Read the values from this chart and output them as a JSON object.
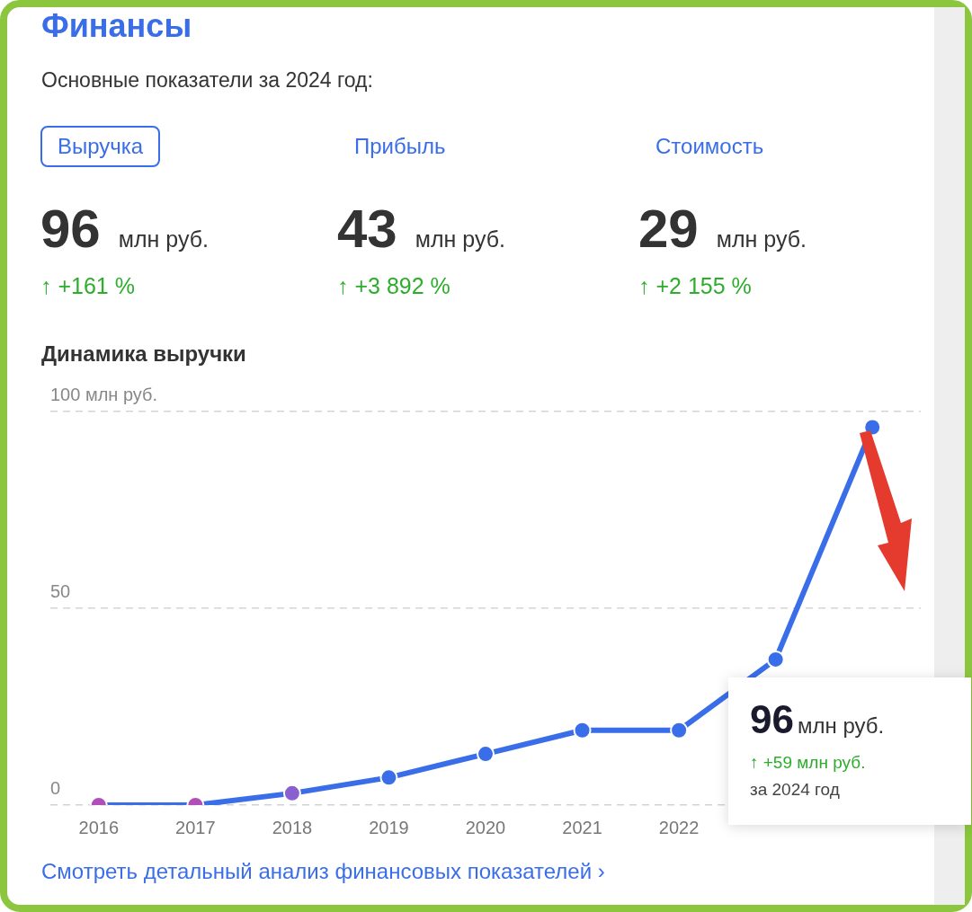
{
  "chart_data": {
    "type": "line",
    "title": "Финансы",
    "subtitle": "Основные показатели за 2024 год:",
    "annotations": [
      "Выручка",
      "Прибыль",
      "Стоимость",
      "96",
      "млн руб.",
      "↑ +161 %",
      "43",
      "млн руб.",
      "↑ +3 892 %",
      "29",
      "млн руб.",
      "↑ +2 155 %",
      "Динамика выручки",
      "96",
      "млн руб.",
      "↑ +59 млн руб.",
      "за 2024 год",
      "Смотреть детальный анализ финансовых показателей ›"
    ],
    "categories": [
      "2016",
      "2017",
      "2018",
      "2019",
      "2020",
      "2021",
      "2022",
      null,
      null
    ],
    "series": [
      {
        "color": "#3a6ee8",
        "colors": [
          "#b04fb8",
          "#b04fb8",
          "#8a5fd0",
          "#3a6ee8",
          "#3a6ee8",
          "#3a6ee8",
          "#3a6ee8",
          "#3a6ee8",
          "#3a6ee8"
        ],
        "values": [
          0,
          0,
          3,
          7,
          13,
          19,
          19,
          37,
          96
        ]
      }
    ],
    "ylim": [
      0,
      100
    ],
    "yticks": [
      {
        "value": 0,
        "label": "0"
      },
      {
        "value": 50,
        "label": "50"
      },
      {
        "value": 100,
        "label": "100 млн руб."
      }
    ],
    "grid": "y",
    "legend": false,
    "marker": "circle",
    "line_style": "solid"
  }
}
